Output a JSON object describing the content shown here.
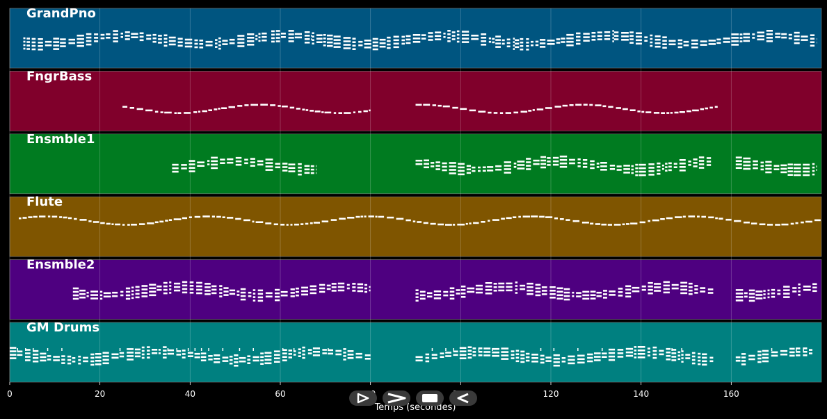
{
  "tracks": [
    {
      "name": "GrandPno",
      "color": "#005580"
    },
    {
      "name": "FngrBass",
      "color": "#80002b"
    },
    {
      "name": "Ensmble1",
      "color": "#007b20"
    },
    {
      "name": "Flute",
      "color": "#7f5500"
    },
    {
      "name": "Ensmble2",
      "color": "#4e0080"
    },
    {
      "name": "GM Drums",
      "color": "#008080"
    }
  ],
  "x_axis": {
    "label": "Temps (secondes)",
    "ticks": [
      "0",
      "20",
      "40",
      "60",
      "80",
      "100",
      "120",
      "140",
      "160"
    ],
    "range": [
      0,
      180
    ]
  },
  "chart_data": {
    "type": "piano-roll",
    "xlabel": "Temps (secondes)",
    "xlim": [
      0,
      180
    ],
    "xticks": [
      0,
      20,
      40,
      60,
      80,
      100,
      120,
      140,
      160
    ],
    "grid": true,
    "series": [
      {
        "name": "GrandPno",
        "active_ranges": [
          [
            3,
            57
          ],
          [
            58,
            67
          ],
          [
            67,
            112
          ],
          [
            112,
            134
          ],
          [
            134,
            179
          ]
        ]
      },
      {
        "name": "FngrBass",
        "active_ranges": [
          [
            25,
            80
          ],
          [
            90,
            157
          ]
        ]
      },
      {
        "name": "Ensmble1",
        "active_ranges": [
          [
            36,
            68
          ],
          [
            90,
            156
          ],
          [
            161,
            179
          ]
        ]
      },
      {
        "name": "Flute",
        "active_ranges": [
          [
            2,
            180
          ]
        ]
      },
      {
        "name": "Ensmble2",
        "active_ranges": [
          [
            14,
            80
          ],
          [
            90,
            156
          ],
          [
            161,
            179
          ]
        ]
      },
      {
        "name": "GM Drums",
        "active_ranges": [
          [
            0,
            68
          ],
          [
            68,
            80
          ],
          [
            90,
            156
          ],
          [
            161,
            178
          ]
        ]
      }
    ]
  },
  "controls": [
    {
      "icon": "play-icon"
    },
    {
      "icon": "fast-forward-icon"
    },
    {
      "icon": "stop-icon"
    },
    {
      "icon": "rewind-icon"
    }
  ]
}
